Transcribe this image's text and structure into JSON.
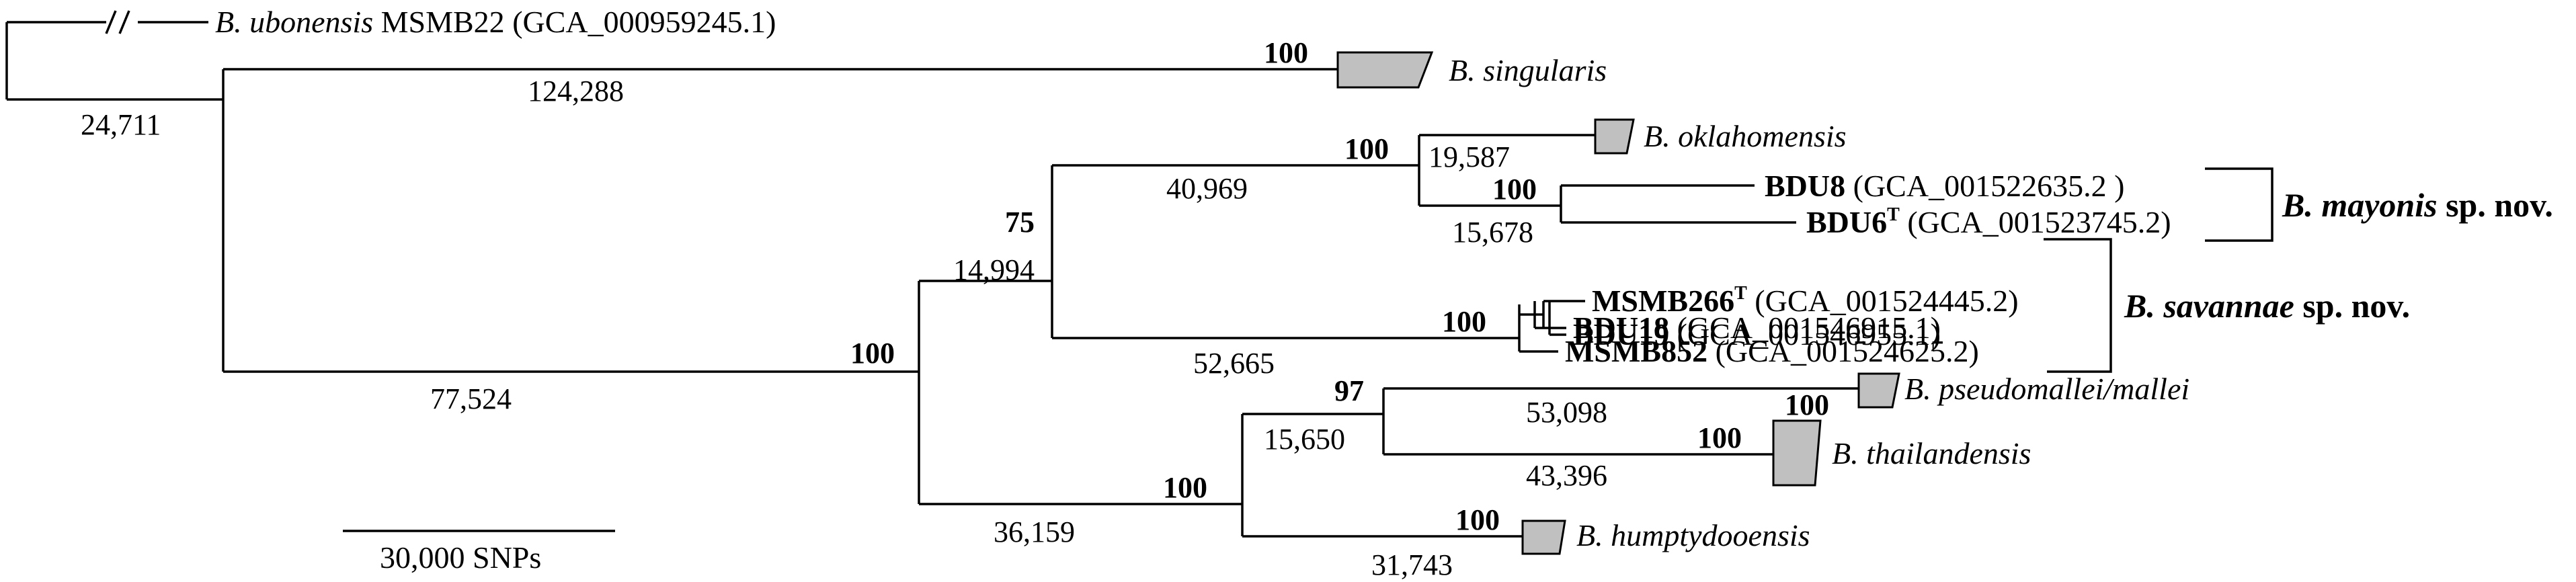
{
  "tree": {
    "taxa": {
      "ubonensis": {
        "genus": "B.",
        "species": "ubonensis",
        "strain": "MSMB22",
        "acc": "(GCA_000959245.1)"
      },
      "singularis": {
        "genus": "B.",
        "species": "singularis"
      },
      "oklahomensis": {
        "genus": "B.",
        "species": "oklahomensis"
      },
      "bdu8": {
        "name": "BDU8",
        "acc": "(GCA_001522635.2 )"
      },
      "bdu6": {
        "name": "BDU6",
        "sup": "T",
        "acc": "(GCA_001523745.2)"
      },
      "msmb266": {
        "name": "MSMB266",
        "sup": "T",
        "acc": "(GCA_001524445.2)"
      },
      "bdu19": {
        "name": "BDU19",
        "acc": "(GCA_001546955.1)"
      },
      "bdu18": {
        "name": "BDU18",
        "acc": "(GCA_001546915.1)"
      },
      "msmb852": {
        "name": "MSMB852",
        "acc": "(GCA_001524625.2)"
      },
      "pseudomallei": {
        "genus": "B.",
        "species": "pseudomallei/mallei"
      },
      "thailandensis": {
        "genus": "B.",
        "species": "thailandensis"
      },
      "humptydooensis": {
        "genus": "B.",
        "species": "humptydooensis"
      }
    },
    "clades": {
      "mayonis": {
        "name": "B. mayonis",
        "suffix": "sp. nov."
      },
      "savannae": {
        "name": "B. savannae",
        "suffix": "sp. nov."
      }
    },
    "branch_lengths": {
      "root": "24,711",
      "singularis": "124,288",
      "ingroup": "77,524",
      "n75": "14,994",
      "okla_mayonis": "40,969",
      "oklahomensis": "19,587",
      "mayonis": "15,678",
      "savannae": "52,665",
      "lower": "36,159",
      "n97": "15,650",
      "pseudomallei": "53,098",
      "thailandensis": "43,396",
      "humptydooensis": "31,743"
    },
    "bootstrap": {
      "singularis": "100",
      "n75": "75",
      "ingroup": "100",
      "okla_mayonis": "100",
      "mayonis": "100",
      "savannae": "100",
      "n97": "97",
      "thailandensis_inner": "100",
      "thailandensis": "100",
      "lower": "100",
      "humptydooensis": "100"
    },
    "scale_bar": {
      "label": "30,000 SNPs"
    }
  }
}
